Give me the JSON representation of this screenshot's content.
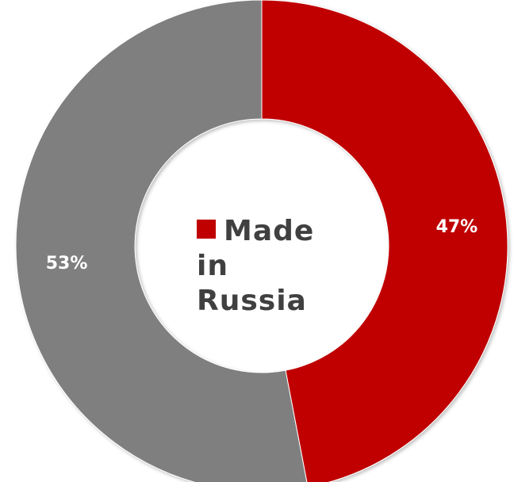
{
  "chart_data": {
    "type": "pie",
    "variant": "donut",
    "slices": [
      {
        "label": "Made in Russia",
        "value": 47,
        "display": "47%",
        "color": "#c00000"
      },
      {
        "label": "",
        "value": 53,
        "display": "53%",
        "color": "#7f7f7f"
      }
    ],
    "legend": {
      "position": "center",
      "entries": [
        {
          "label": "Made in Russia",
          "color": "#c00000"
        }
      ]
    },
    "start_angle_deg": 0,
    "direction": "clockwise"
  }
}
